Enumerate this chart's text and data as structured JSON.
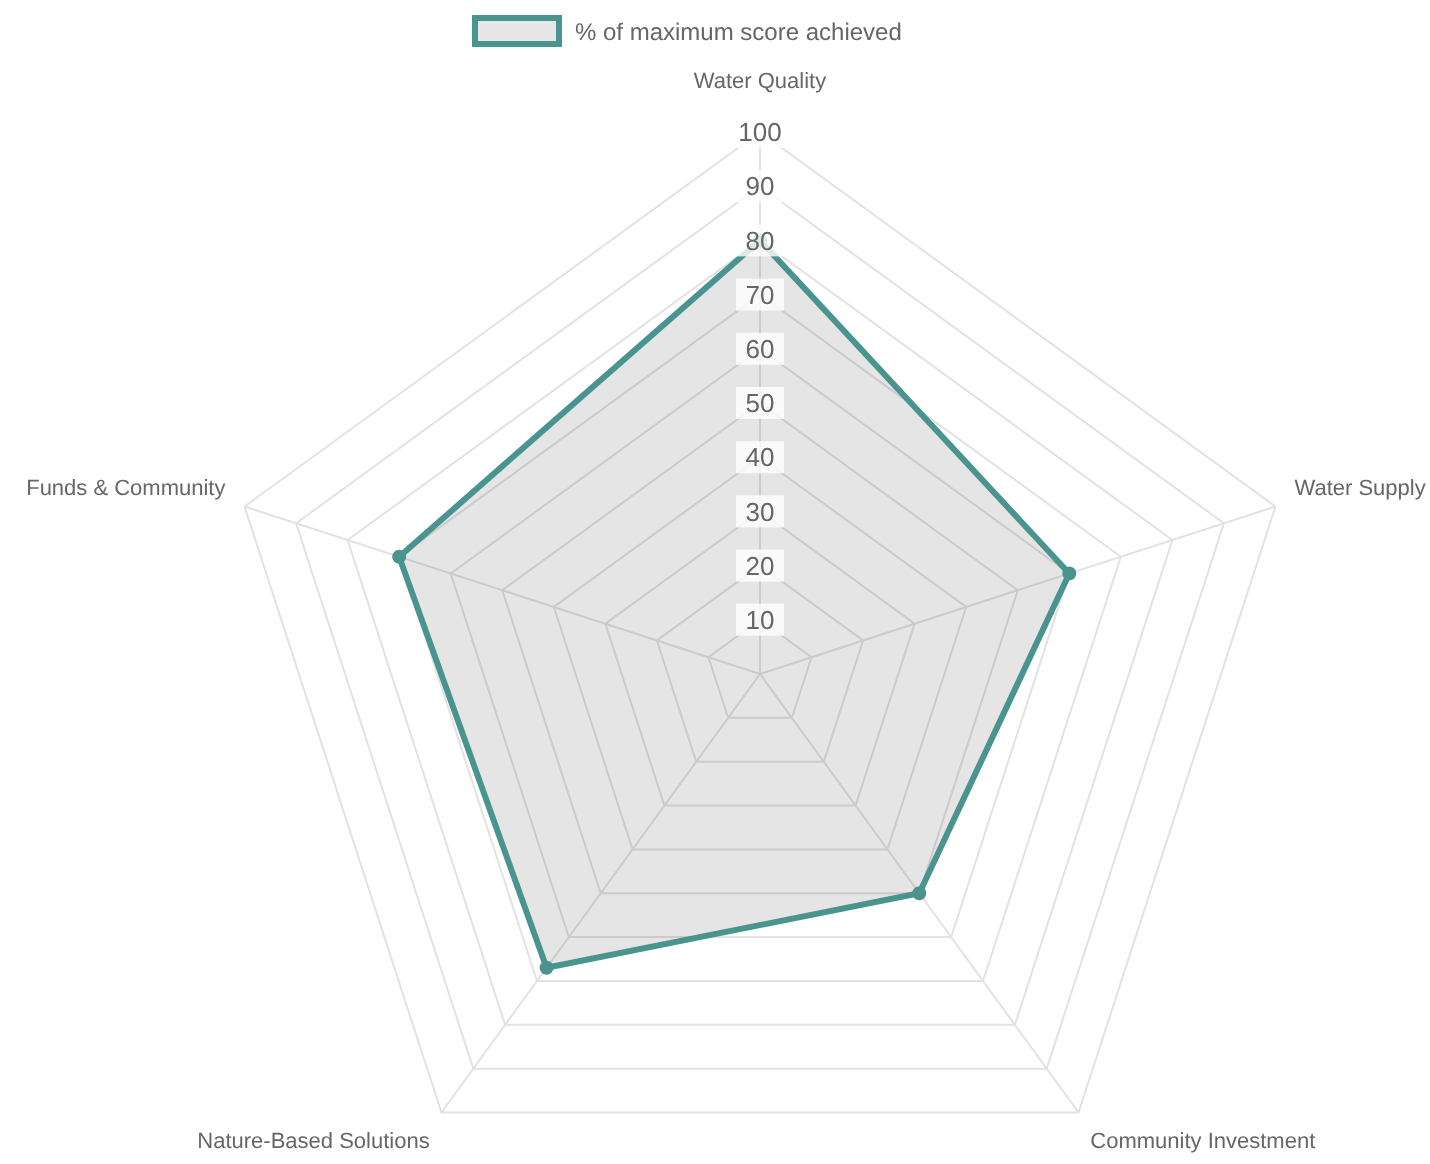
{
  "chart_data": {
    "type": "radar",
    "categories": [
      "Water Quality",
      "Water Supply",
      "Community Investment",
      "Nature-Based Solutions",
      "Funds & Community"
    ],
    "series": [
      {
        "name": "% of maximum score achieved",
        "color": "#4a9490",
        "values": [
          80,
          60,
          50,
          67,
          70
        ]
      }
    ],
    "ylim": [
      0,
      100
    ],
    "yticks": [
      10,
      20,
      30,
      40,
      50,
      60,
      70,
      80,
      90,
      100
    ],
    "grid": true,
    "legend": "top",
    "marker": "circle"
  }
}
